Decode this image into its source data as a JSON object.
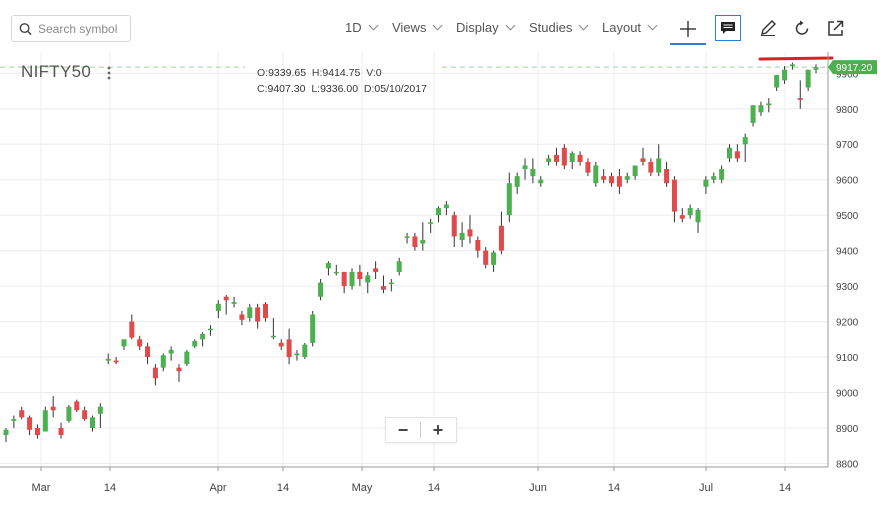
{
  "toolbar": {
    "search_placeholder": "Search symbol",
    "interval": "1D",
    "views": "Views",
    "display": "Display",
    "studies": "Studies",
    "layout": "Layout"
  },
  "symbol": "NIFTY50",
  "legend": {
    "o_label": "O:",
    "o": "9339.65",
    "h_label": "H:",
    "h": "9414.75",
    "v_label": "V:",
    "v": "0",
    "c_label": "C:",
    "c": "9407.30",
    "l_label": "L:",
    "l": "9336.00",
    "d_label": "D:",
    "d": "05/10/2017"
  },
  "zoom": {
    "minus": "−",
    "plus": "+"
  },
  "colors": {
    "up": "#4caf50",
    "down": "#e04a4a",
    "grid": "#ececec",
    "price_tag": "#4caf50",
    "dashed": "#9fd39f",
    "drawn_line": "#e02020"
  },
  "chart_data": {
    "type": "candlestick",
    "y_ticks": [
      8800,
      8900,
      9000,
      9100,
      9200,
      9300,
      9400,
      9500,
      9600,
      9700,
      9800,
      9900
    ],
    "x_ticks": [
      "Mar",
      "14",
      "Apr",
      "14",
      "May",
      "14",
      "Jun",
      "14",
      "Jul",
      "14"
    ],
    "ylim": [
      8790,
      9960
    ],
    "last_price": "9917.20",
    "candles": [
      [
        8880,
        8900,
        8860,
        8895
      ],
      [
        8920,
        8935,
        8900,
        8925
      ],
      [
        8950,
        8960,
        8925,
        8930
      ],
      [
        8930,
        8935,
        8880,
        8895
      ],
      [
        8900,
        8910,
        8870,
        8880
      ],
      [
        8890,
        8960,
        8890,
        8950
      ],
      [
        8960,
        8990,
        8930,
        8950
      ],
      [
        8900,
        8915,
        8870,
        8880
      ],
      [
        8920,
        8965,
        8915,
        8960
      ],
      [
        8975,
        8980,
        8945,
        8950
      ],
      [
        8950,
        8960,
        8920,
        8925
      ],
      [
        8900,
        8935,
        8890,
        8930
      ],
      [
        8940,
        8970,
        8900,
        8960
      ],
      [
        9090,
        9110,
        9080,
        9095
      ],
      [
        9090,
        9100,
        9080,
        9085
      ],
      [
        9130,
        9150,
        9120,
        9150
      ],
      [
        9200,
        9220,
        9150,
        9155
      ],
      [
        9150,
        9160,
        9120,
        9130
      ],
      [
        9130,
        9140,
        9080,
        9100
      ],
      [
        9070,
        9080,
        9020,
        9040
      ],
      [
        9070,
        9110,
        9060,
        9105
      ],
      [
        9110,
        9130,
        9090,
        9120
      ],
      [
        9070,
        9080,
        9030,
        9060
      ],
      [
        9080,
        9120,
        9075,
        9115
      ],
      [
        9130,
        9150,
        9125,
        9145
      ],
      [
        9150,
        9170,
        9130,
        9165
      ],
      [
        9180,
        9190,
        9160,
        9180
      ],
      [
        9230,
        9260,
        9210,
        9250
      ],
      [
        9270,
        9275,
        9220,
        9260
      ],
      [
        9250,
        9270,
        9240,
        9255
      ],
      [
        9220,
        9230,
        9190,
        9205
      ],
      [
        9210,
        9250,
        9200,
        9240
      ],
      [
        9240,
        9250,
        9180,
        9200
      ],
      [
        9250,
        9255,
        9200,
        9210
      ],
      [
        9160,
        9210,
        9150,
        9160
      ],
      [
        9140,
        9150,
        9120,
        9130
      ],
      [
        9150,
        9180,
        9080,
        9100
      ],
      [
        9105,
        9120,
        9090,
        9110
      ],
      [
        9100,
        9140,
        9095,
        9135
      ],
      [
        9140,
        9230,
        9130,
        9220
      ],
      [
        9270,
        9320,
        9260,
        9310
      ],
      [
        9350,
        9370,
        9330,
        9365
      ],
      [
        9340,
        9360,
        9330,
        9340
      ],
      [
        9340,
        9340,
        9280,
        9300
      ],
      [
        9300,
        9350,
        9290,
        9340
      ],
      [
        9340,
        9360,
        9300,
        9320
      ],
      [
        9310,
        9340,
        9280,
        9330
      ],
      [
        9350,
        9370,
        9320,
        9340
      ],
      [
        9300,
        9330,
        9280,
        9290
      ],
      [
        9310,
        9320,
        9285,
        9310
      ],
      [
        9340,
        9380,
        9330,
        9370
      ],
      [
        9440,
        9450,
        9420,
        9440
      ],
      [
        9440,
        9450,
        9400,
        9410
      ],
      [
        9420,
        9480,
        9400,
        9430
      ],
      [
        9480,
        9490,
        9450,
        9480
      ],
      [
        9500,
        9525,
        9480,
        9520
      ],
      [
        9520,
        9540,
        9500,
        9530
      ],
      [
        9500,
        9510,
        9410,
        9440
      ],
      [
        9430,
        9480,
        9410,
        9450
      ],
      [
        9460,
        9500,
        9420,
        9440
      ],
      [
        9430,
        9440,
        9380,
        9400
      ],
      [
        9400,
        9410,
        9350,
        9360
      ],
      [
        9360,
        9400,
        9340,
        9395
      ],
      [
        9470,
        9510,
        9390,
        9400
      ],
      [
        9500,
        9620,
        9480,
        9590
      ],
      [
        9580,
        9620,
        9560,
        9610
      ],
      [
        9630,
        9660,
        9600,
        9640
      ],
      [
        9610,
        9660,
        9590,
        9630
      ],
      [
        9590,
        9610,
        9580,
        9600
      ],
      [
        9650,
        9670,
        9640,
        9660
      ],
      [
        9670,
        9690,
        9640,
        9650
      ],
      [
        9690,
        9700,
        9630,
        9640
      ],
      [
        9650,
        9680,
        9630,
        9675
      ],
      [
        9670,
        9680,
        9640,
        9650
      ],
      [
        9650,
        9660,
        9610,
        9620
      ],
      [
        9590,
        9650,
        9580,
        9640
      ],
      [
        9610,
        9630,
        9590,
        9600
      ],
      [
        9610,
        9620,
        9580,
        9590
      ],
      [
        9610,
        9630,
        9560,
        9580
      ],
      [
        9600,
        9620,
        9590,
        9610
      ],
      [
        9610,
        9640,
        9600,
        9640
      ],
      [
        9660,
        9690,
        9640,
        9650
      ],
      [
        9650,
        9660,
        9610,
        9620
      ],
      [
        9620,
        9700,
        9610,
        9660
      ],
      [
        9630,
        9650,
        9580,
        9590
      ],
      [
        9600,
        9610,
        9480,
        9510
      ],
      [
        9500,
        9520,
        9480,
        9490
      ],
      [
        9500,
        9530,
        9490,
        9520
      ],
      [
        9480,
        9520,
        9450,
        9515
      ],
      [
        9580,
        9610,
        9560,
        9600
      ],
      [
        9600,
        9620,
        9590,
        9610
      ],
      [
        9600,
        9640,
        9590,
        9630
      ],
      [
        9660,
        9700,
        9650,
        9690
      ],
      [
        9680,
        9700,
        9650,
        9660
      ],
      [
        9700,
        9730,
        9650,
        9720
      ],
      [
        9760,
        9810,
        9750,
        9810
      ],
      [
        9790,
        9820,
        9780,
        9810
      ],
      [
        9810,
        9830,
        9790,
        9815
      ],
      [
        9860,
        9890,
        9850,
        9895
      ],
      [
        9880,
        9920,
        9870,
        9910
      ],
      [
        9920,
        9930,
        9910,
        9925
      ],
      [
        9830,
        9880,
        9800,
        9825
      ],
      [
        9860,
        9910,
        9850,
        9910
      ],
      [
        9910,
        9925,
        9900,
        9917
      ]
    ]
  }
}
